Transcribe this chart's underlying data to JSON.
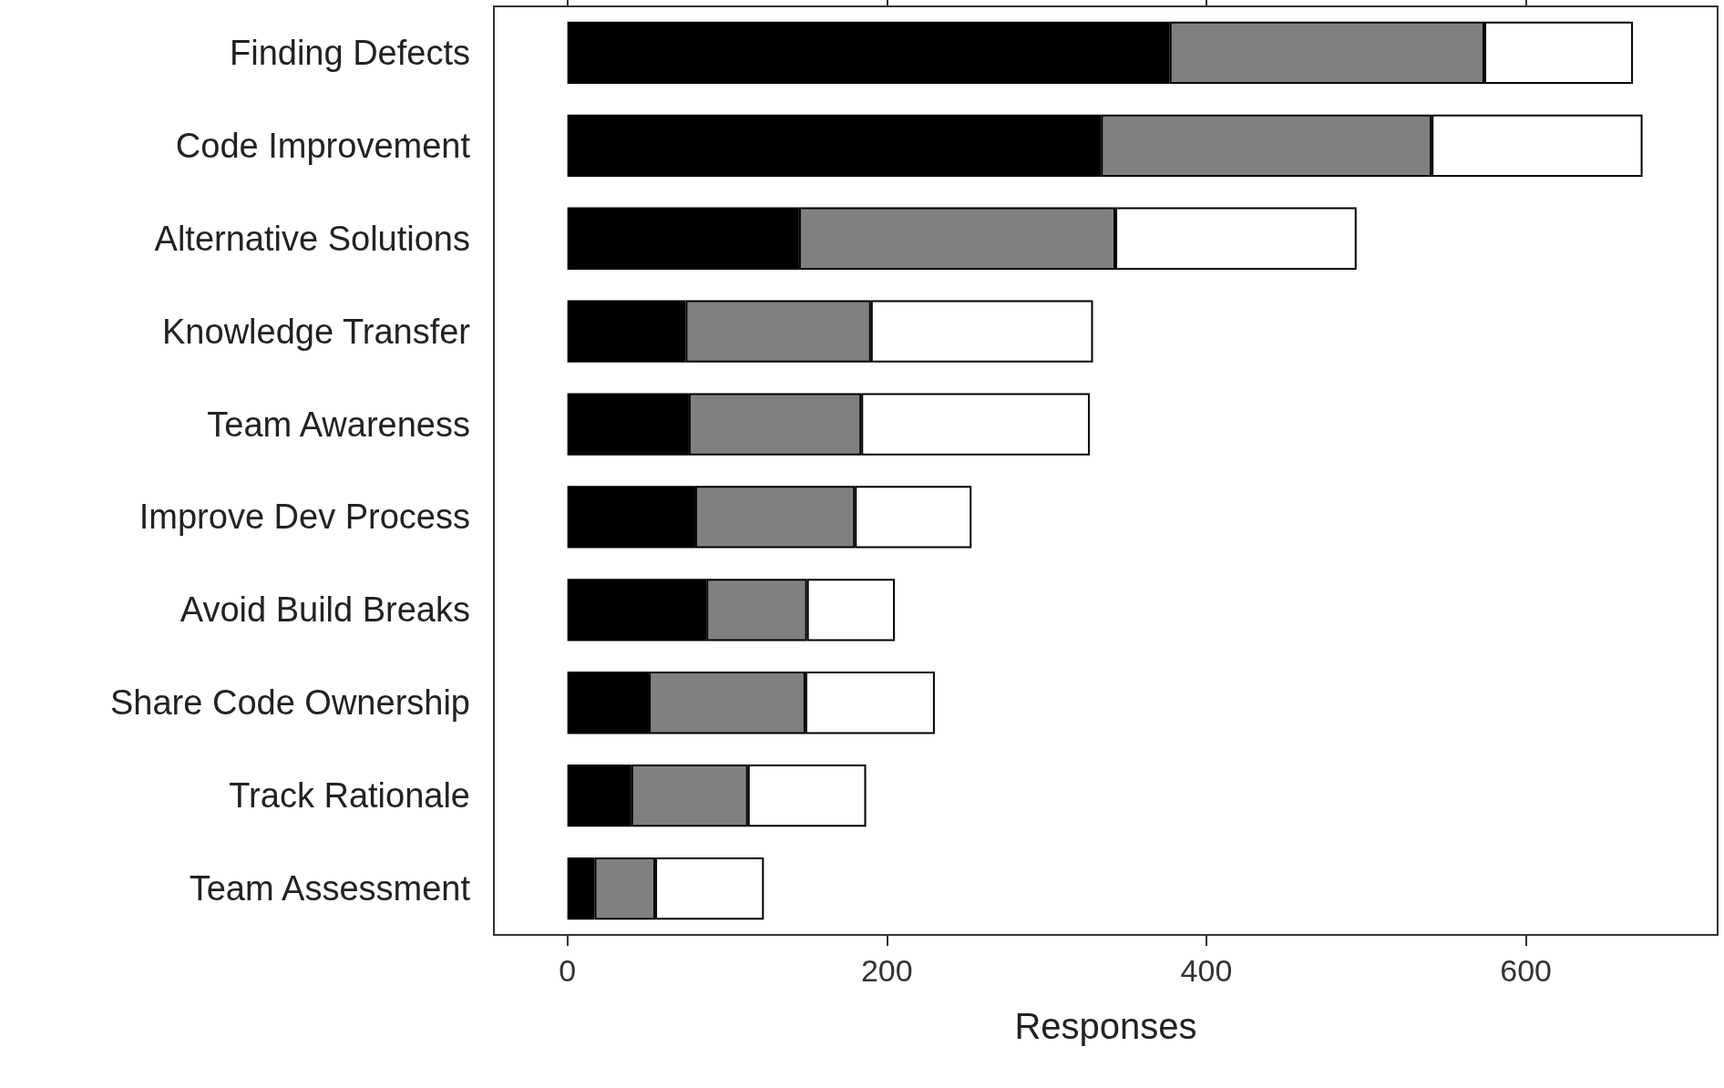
{
  "chart_data": {
    "type": "bar",
    "orientation": "horizontal",
    "stacked": true,
    "xlabel": "Responses",
    "categories": [
      "Finding Defects",
      "Code Improvement",
      "Alternative Solutions",
      "Knowledge Transfer",
      "Team Awareness",
      "Improve Dev Process",
      "Avoid Build Breaks",
      "Share Code Ownership",
      "Track Rationale",
      "Team Assessment"
    ],
    "series": [
      {
        "color": "#000000",
        "values": [
          377,
          334,
          145,
          74,
          76,
          80,
          87,
          51,
          40,
          17
        ]
      },
      {
        "color": "#808080",
        "values": [
          197,
          207,
          198,
          116,
          108,
          100,
          63,
          98,
          73,
          38
        ]
      },
      {
        "color": "#ffffff",
        "values": [
          93,
          132,
          151,
          139,
          143,
          73,
          55,
          81,
          74,
          68
        ]
      }
    ],
    "xlim": [
      -46,
      720
    ],
    "xticks": [
      0,
      200,
      400,
      600
    ],
    "grid": false
  }
}
